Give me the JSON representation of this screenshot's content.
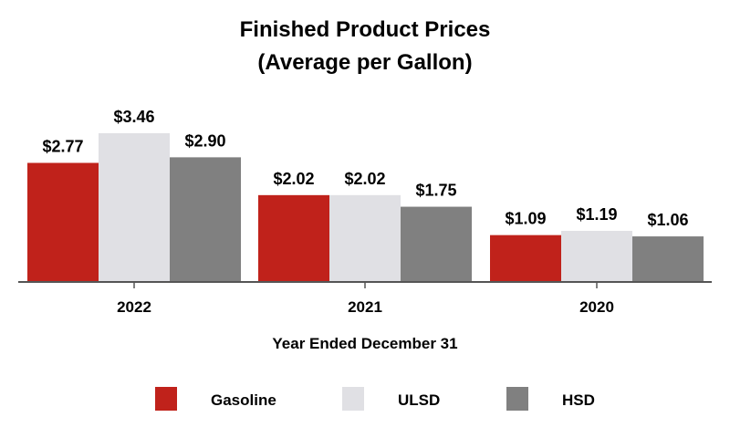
{
  "chart_data": {
    "type": "bar",
    "title": "Finished Product Prices",
    "subtitle": "(Average per Gallon)",
    "xlabel": "Year Ended December 31",
    "ylabel": "",
    "categories": [
      "2022",
      "2021",
      "2020"
    ],
    "series": [
      {
        "name": "Gasoline",
        "values": [
          2.77,
          2.02,
          1.09
        ],
        "labels": [
          "$2.77",
          "$2.02",
          "$1.09"
        ],
        "color": "#c0221b"
      },
      {
        "name": "ULSD",
        "values": [
          3.46,
          2.02,
          1.19
        ],
        "labels": [
          "$3.46",
          "$2.02",
          "$1.19"
        ],
        "color": "#e0e0e4"
      },
      {
        "name": "HSD",
        "values": [
          2.9,
          1.75,
          1.06
        ],
        "labels": [
          "$2.90",
          "$1.75",
          "$1.06"
        ],
        "color": "#808080"
      }
    ],
    "ylim": [
      0,
      3.46
    ],
    "grid": false,
    "legend": "bottom"
  }
}
